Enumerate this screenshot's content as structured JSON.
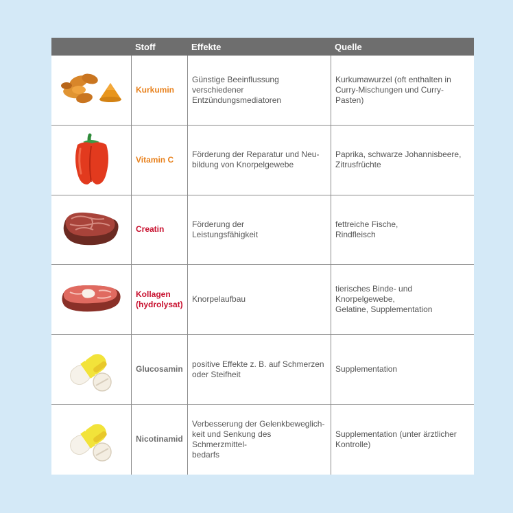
{
  "header": {
    "stoff": "Stoff",
    "effekte": "Effekte",
    "quelle": "Quelle"
  },
  "rows": [
    {
      "image_icon": "turmeric-icon",
      "stoff": "Kurkumin",
      "stoff_color": "#e8821e",
      "effekte": "Günstige Beeinflussung verschiedener\nEntzündungsmediatoren",
      "quelle": "Kurkumawurzel (oft enthalten in\nCurry-Mischungen und Curry-Pasten)"
    },
    {
      "image_icon": "bell-pepper-icon",
      "stoff": "Vitamin C",
      "stoff_color": "#e8821e",
      "effekte": "Förderung der Reparatur und Neu-\nbildung von Knorpelgewebe",
      "quelle": "Paprika, schwarze Johannisbeere,\nZitrusfrüchte"
    },
    {
      "image_icon": "steak-icon",
      "stoff": "Creatin",
      "stoff_color": "#c8102e",
      "effekte": "Förderung der\nLeistungsfähigkeit",
      "quelle": "fettreiche Fische,\nRindfleisch"
    },
    {
      "image_icon": "raw-meat-icon",
      "stoff": "Kollagen\n(hydrolysat)",
      "stoff_color": "#c8102e",
      "effekte": "Knorpelaufbau",
      "quelle": "tierisches Binde- und Knorpelgewebe,\nGelatine, Supplementation"
    },
    {
      "image_icon": "pill-icon",
      "stoff": "Glucosamin",
      "stoff_color": "#6e6e6e",
      "effekte": "positive Effekte z. B. auf Schmerzen\noder Steifheit",
      "quelle": "Supplementation"
    },
    {
      "image_icon": "pill-icon",
      "stoff": "Nicotinamid",
      "stoff_color": "#6e6e6e",
      "effekte": "Verbesserung der Gelenkbeweglich-\nkeit und Senkung des Schmerzmittel-\nbedarfs",
      "quelle": "Supplementation (unter ärztlicher\nKontrolle)"
    }
  ]
}
